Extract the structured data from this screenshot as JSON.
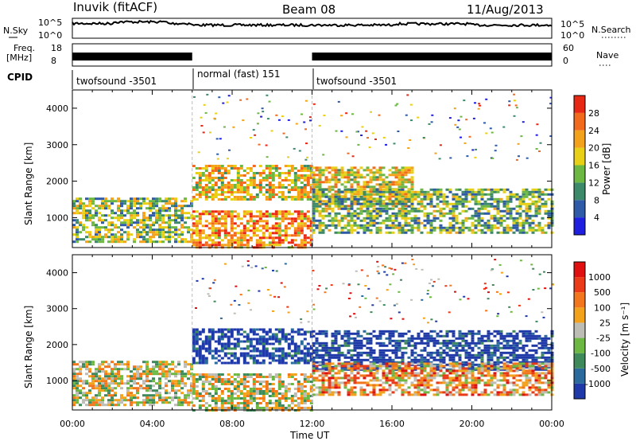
{
  "header": {
    "title": "Inuvik (fitACF)",
    "beam": "Beam 08",
    "date": "11/Aug/2013"
  },
  "top_panels": {
    "nsky": {
      "left_label": "N.Sky",
      "right_label": "N.Search",
      "left_ticks": [
        "10^5",
        "10^0"
      ],
      "right_ticks": [
        "10^5",
        "10^0"
      ]
    },
    "freq": {
      "left_label_1": "Freq.",
      "left_label_2": "[MHz]",
      "right_label": "Nave",
      "left_ticks": [
        "18",
        "8"
      ],
      "right_ticks": [
        "60",
        "0"
      ]
    },
    "cpid": {
      "label": "CPID",
      "segments": [
        "twofsound -3501",
        "normal (fast) 151",
        "twofsound -3501"
      ]
    }
  },
  "chart_data": [
    {
      "type": "heatmap",
      "name": "power",
      "ylabel": "Slant Range [km]",
      "ylim": [
        180,
        4500
      ],
      "yticks": [
        1000,
        2000,
        3000,
        4000
      ],
      "colorbar": {
        "label": "Power [dB]",
        "ticks": [
          "4",
          "8",
          "12",
          "16",
          "20",
          "24",
          "28"
        ],
        "colors": [
          "#1f1fe0",
          "#2e5aa8",
          "#3d8a6a",
          "#6cb843",
          "#e8d016",
          "#f3a21c",
          "#f26a1c",
          "#e62814"
        ]
      },
      "echo_regions": [
        {
          "x0": 0,
          "x1": 6,
          "y0": 350,
          "y1": 1550,
          "level": 0.45
        },
        {
          "x0": 6,
          "x1": 12,
          "y0": 1500,
          "y1": 2450,
          "level": 0.6
        },
        {
          "x0": 6,
          "x1": 12,
          "y0": 180,
          "y1": 1200,
          "level": 0.75
        },
        {
          "x0": 12,
          "x1": 17,
          "y0": 1300,
          "y1": 2400,
          "level": 0.6
        },
        {
          "x0": 12,
          "x1": 24,
          "y0": 600,
          "y1": 1800,
          "level": 0.4
        }
      ]
    },
    {
      "type": "heatmap",
      "name": "velocity",
      "xlabel": "Time UT",
      "ylabel": "Slant Range [km]",
      "ylim": [
        180,
        4500
      ],
      "yticks": [
        1000,
        2000,
        3000,
        4000
      ],
      "xticks": [
        "00:00",
        "04:00",
        "08:00",
        "12:00",
        "16:00",
        "20:00",
        "00:00"
      ],
      "colorbar": {
        "label": "Velocity [m s⁻¹]",
        "ticks": [
          "1000",
          "500",
          "100",
          "25",
          "-25",
          "-100",
          "-500",
          "-1000"
        ],
        "colors": [
          "#1f3aa8",
          "#2b6a9c",
          "#3e8a5a",
          "#6cb843",
          "#bdbdb6",
          "#f3a21c",
          "#f2761c",
          "#ea3a18",
          "#e01010"
        ]
      },
      "echo_regions": [
        {
          "x0": 0,
          "x1": 6,
          "y0": 350,
          "y1": 1550,
          "level": 0.5
        },
        {
          "x0": 6,
          "x1": 12,
          "y0": 1500,
          "y1": 2450,
          "level": 0.0
        },
        {
          "x0": 6,
          "x1": 12,
          "y0": 180,
          "y1": 1200,
          "level": 0.5
        },
        {
          "x0": 12,
          "x1": 24,
          "y0": 1300,
          "y1": 2400,
          "level": 0.0
        },
        {
          "x0": 12,
          "x1": 24,
          "y0": 600,
          "y1": 1500,
          "level": 0.65
        }
      ]
    }
  ]
}
